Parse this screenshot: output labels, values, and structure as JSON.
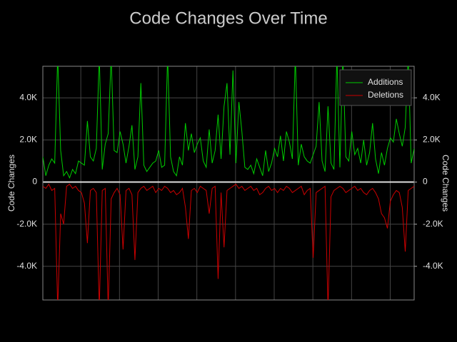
{
  "chart_data": {
    "type": "line",
    "title": "Code Changes Over Time",
    "ylabel": "Code Changes",
    "y2label": "Code Changes",
    "ylim": [
      -5600,
      5500
    ],
    "yticks": [
      {
        "value": -4000,
        "label": "-4.0K"
      },
      {
        "value": -2000,
        "label": "-2.0K"
      },
      0,
      {
        "value": 2000,
        "label": "2.0K"
      },
      {
        "value": 4000,
        "label": "4.0K"
      }
    ],
    "y2lim": [
      -5600,
      5500
    ],
    "y2ticks": [
      {
        "value": -4000,
        "label": "-4.0K"
      },
      {
        "value": -2000,
        "label": "-2.0K"
      },
      0,
      {
        "value": 2000,
        "label": "2.0K"
      },
      {
        "value": 4000,
        "label": "4.0K"
      }
    ],
    "grid": true,
    "legend": "upper right",
    "series": [
      {
        "name": "Additions",
        "color": "#00cc00",
        "values": [
          1200,
          300,
          800,
          1100,
          900,
          6000,
          1500,
          300,
          500,
          200,
          600,
          400,
          1000,
          900,
          800,
          2900,
          1200,
          1000,
          1600,
          6000,
          600,
          1800,
          2300,
          6000,
          1500,
          1400,
          2400,
          1800,
          900,
          1700,
          2700,
          600,
          1200,
          4700,
          800,
          500,
          700,
          900,
          1000,
          1500,
          700,
          800,
          6000,
          1200,
          500,
          300,
          1200,
          800,
          2800,
          1500,
          2300,
          1400,
          1800,
          2100,
          1000,
          700,
          2500,
          900,
          1500,
          3200,
          1100,
          3600,
          4700,
          1300,
          5300,
          900,
          3800,
          2400,
          700,
          600,
          800,
          400,
          1100,
          700,
          300,
          1500,
          500,
          900,
          1600,
          1200,
          2200,
          1000,
          2400,
          1900,
          1100,
          6000,
          800,
          1800,
          1200,
          1000,
          900,
          1300,
          1700,
          3800,
          1000,
          500,
          3600,
          900,
          600,
          6000,
          700,
          6000,
          1200,
          1000,
          2400,
          1300,
          1600,
          900,
          2000,
          800,
          1400,
          2800,
          1100,
          400,
          1400,
          800,
          1600,
          2100,
          1900,
          3000,
          2300,
          1700,
          2600,
          6000,
          900,
          1600
        ]
      },
      {
        "name": "Deletions",
        "color": "#cc0000",
        "values": [
          -200,
          -300,
          -100,
          -400,
          -300,
          -6000,
          -1500,
          -2000,
          -200,
          -100,
          -300,
          -200,
          -400,
          -500,
          -1000,
          -2900,
          -400,
          -300,
          -500,
          -6000,
          -400,
          -300,
          -6000,
          -800,
          -500,
          -300,
          -600,
          -3200,
          -400,
          -300,
          -600,
          -3700,
          -500,
          -300,
          -200,
          -400,
          -300,
          -200,
          -500,
          -300,
          -400,
          -200,
          -300,
          -500,
          -400,
          -600,
          -500,
          -300,
          -1200,
          -2700,
          -400,
          -300,
          -500,
          -200,
          -300,
          -400,
          -1500,
          -300,
          -200,
          -4600,
          -500,
          -3100,
          -400,
          -300,
          -200,
          -100,
          -300,
          -200,
          -400,
          -300,
          -200,
          -400,
          -300,
          -600,
          -500,
          -300,
          -200,
          -400,
          -300,
          -500,
          -300,
          -400,
          -200,
          -300,
          -500,
          -400,
          -300,
          -200,
          -600,
          -400,
          -300,
          -3600,
          -500,
          -400,
          -300,
          -200,
          -6000,
          -700,
          -400,
          -300,
          -200,
          -300,
          -500,
          -400,
          -300,
          -200,
          -400,
          -300,
          -500,
          -600,
          -400,
          -300,
          -500,
          -800,
          -1500,
          -1700,
          -2200,
          -900,
          -600,
          -400,
          -500,
          -1200,
          -3300,
          -400,
          -300,
          -200
        ]
      }
    ]
  }
}
